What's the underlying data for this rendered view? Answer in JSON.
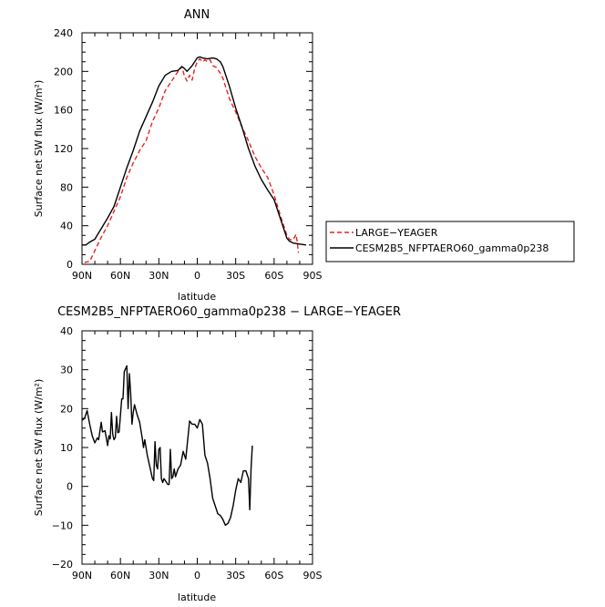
{
  "chart_data": [
    {
      "type": "line",
      "title": "ANN",
      "xlabel": "latitude",
      "ylabel": "Surface net SW flux (W/m²)",
      "xlim": [
        -90,
        90
      ],
      "ylim": [
        0,
        240
      ],
      "x_ticks": [
        -90,
        -60,
        -30,
        0,
        30,
        60,
        90
      ],
      "x_tick_labels": [
        "90N",
        "60N",
        "30N",
        "0",
        "30S",
        "60S",
        "90S"
      ],
      "y_ticks": [
        0,
        40,
        80,
        120,
        160,
        200,
        240
      ],
      "y_tick_labels": [
        "0",
        "40",
        "80",
        "120",
        "160",
        "200",
        "240"
      ],
      "legend_position": "right",
      "series": [
        {
          "name": "LARGE−YEAGER",
          "color": "#e8231e",
          "dash": "dashed",
          "points": [
            [
              -88,
              2
            ],
            [
              -84,
              3
            ],
            [
              -80,
              14
            ],
            [
              -75,
              28
            ],
            [
              -70,
              40
            ],
            [
              -65,
              55
            ],
            [
              -60,
              70
            ],
            [
              -55,
              90
            ],
            [
              -50,
              105
            ],
            [
              -45,
              118
            ],
            [
              -40,
              128
            ],
            [
              -35,
              148
            ],
            [
              -30,
              162
            ],
            [
              -25,
              180
            ],
            [
              -20,
              190
            ],
            [
              -15,
              200
            ],
            [
              -12,
              205
            ],
            [
              -10,
              195
            ],
            [
              -8,
              190
            ],
            [
              -6,
              196
            ],
            [
              -4,
              191
            ],
            [
              -2,
              203
            ],
            [
              0,
              210
            ],
            [
              2,
              213
            ],
            [
              4,
              210
            ],
            [
              6,
              212
            ],
            [
              8,
              210
            ],
            [
              10,
              212
            ],
            [
              12,
              206
            ],
            [
              15,
              204
            ],
            [
              18,
              198
            ],
            [
              20,
              193
            ],
            [
              25,
              172
            ],
            [
              30,
              158
            ],
            [
              35,
              142
            ],
            [
              40,
              128
            ],
            [
              45,
              112
            ],
            [
              50,
              100
            ],
            [
              55,
              90
            ],
            [
              60,
              72
            ],
            [
              65,
              50
            ],
            [
              68,
              38
            ],
            [
              70,
              30
            ],
            [
              72,
              26
            ],
            [
              74,
              25
            ],
            [
              76,
              28
            ],
            [
              77,
              31
            ],
            [
              78,
              24
            ],
            [
              79,
              12
            ]
          ]
        },
        {
          "name": "CESM2B5_NFPTAERO60_gamma0p238",
          "color": "#000000",
          "dash": "solid",
          "points": [
            [
              -90,
              20
            ],
            [
              -87,
              20
            ],
            [
              -84,
              23
            ],
            [
              -80,
              26
            ],
            [
              -75,
              37
            ],
            [
              -70,
              48
            ],
            [
              -65,
              60
            ],
            [
              -60,
              80
            ],
            [
              -55,
              100
            ],
            [
              -50,
              118
            ],
            [
              -45,
              138
            ],
            [
              -40,
              153
            ],
            [
              -35,
              168
            ],
            [
              -30,
              185
            ],
            [
              -25,
              196
            ],
            [
              -20,
              200
            ],
            [
              -15,
              201
            ],
            [
              -12,
              205
            ],
            [
              -10,
              203
            ],
            [
              -8,
              200
            ],
            [
              -6,
              203
            ],
            [
              -4,
              206
            ],
            [
              -2,
              210
            ],
            [
              0,
              214
            ],
            [
              2,
              215
            ],
            [
              4,
              214
            ],
            [
              8,
              213
            ],
            [
              12,
              214
            ],
            [
              15,
              213
            ],
            [
              18,
              210
            ],
            [
              20,
              205
            ],
            [
              25,
              185
            ],
            [
              30,
              162
            ],
            [
              35,
              142
            ],
            [
              40,
              120
            ],
            [
              45,
              102
            ],
            [
              50,
              88
            ],
            [
              55,
              77
            ],
            [
              60,
              67
            ],
            [
              65,
              47
            ],
            [
              68,
              35
            ],
            [
              70,
              27
            ],
            [
              72,
              24
            ],
            [
              75,
              22
            ],
            [
              80,
              21
            ],
            [
              85,
              20
            ]
          ]
        }
      ]
    },
    {
      "type": "line",
      "title": "CESM2B5_NFPTAERO60_gamma0p238 − LARGE−YEAGER",
      "xlabel": "latitude",
      "ylabel": "Surface net SW flux (W/m²)",
      "xlim": [
        -90,
        90
      ],
      "ylim": [
        -20,
        40
      ],
      "x_ticks": [
        -90,
        -60,
        -30,
        0,
        30,
        60,
        90
      ],
      "x_tick_labels": [
        "90N",
        "60N",
        "30N",
        "0",
        "30S",
        "60S",
        "90S"
      ],
      "y_ticks": [
        -20,
        -10,
        0,
        10,
        20,
        30,
        40
      ],
      "y_tick_labels": [
        "−20",
        "−10",
        "0",
        "10",
        "20",
        "30",
        "40"
      ],
      "series": [
        {
          "name": "difference",
          "color": "#000000",
          "dash": "solid",
          "points": [
            [
              -90,
              17
            ],
            [
              -88,
              17.5
            ],
            [
              -86,
              19.5
            ],
            [
              -84,
              16
            ],
            [
              -82,
              13
            ],
            [
              -80,
              11.2
            ],
            [
              -78,
              12.5
            ],
            [
              -77,
              12
            ],
            [
              -75,
              16.5
            ],
            [
              -74,
              14
            ],
            [
              -72,
              14.3
            ],
            [
              -70,
              10.5
            ],
            [
              -69,
              13
            ],
            [
              -68,
              12.2
            ],
            [
              -67,
              19
            ],
            [
              -66,
              13.4
            ],
            [
              -65,
              12
            ],
            [
              -64,
              12.6
            ],
            [
              -63,
              18
            ],
            [
              -62,
              13.8
            ],
            [
              -61,
              14
            ],
            [
              -59,
              22.5
            ],
            [
              -58,
              22.5
            ],
            [
              -57,
              29.5
            ],
            [
              -55,
              31
            ],
            [
              -54,
              20
            ],
            [
              -53,
              29
            ],
            [
              -52,
              24
            ],
            [
              -51,
              16
            ],
            [
              -50,
              19
            ],
            [
              -49,
              21
            ],
            [
              -47,
              18.5
            ],
            [
              -45,
              16.5
            ],
            [
              -43,
              12.5
            ],
            [
              -42,
              10
            ],
            [
              -41,
              12
            ],
            [
              -39,
              8
            ],
            [
              -37,
              5
            ],
            [
              -35,
              2
            ],
            [
              -34,
              1.5
            ],
            [
              -33,
              11.5
            ],
            [
              -32,
              5.5
            ],
            [
              -31,
              4.5
            ],
            [
              -30,
              9.5
            ],
            [
              -29,
              10
            ],
            [
              -28,
              2
            ],
            [
              -27,
              1
            ],
            [
              -26,
              2
            ],
            [
              -25,
              1.5
            ],
            [
              -24,
              1
            ],
            [
              -23,
              0.5
            ],
            [
              -22,
              0.5
            ],
            [
              -21,
              9.5
            ],
            [
              -20,
              2
            ],
            [
              -19,
              2.5
            ],
            [
              -18,
              4.5
            ],
            [
              -17,
              2.5
            ],
            [
              -15,
              4.5
            ],
            [
              -13,
              5.5
            ],
            [
              -11,
              9
            ],
            [
              -9,
              7
            ],
            [
              -7,
              13.5
            ],
            [
              -6,
              16.8
            ],
            [
              -4,
              16
            ],
            [
              -2,
              16
            ],
            [
              0,
              15
            ],
            [
              2,
              17.2
            ],
            [
              4,
              16
            ],
            [
              6,
              8
            ],
            [
              8,
              6
            ],
            [
              10,
              2
            ],
            [
              12,
              -3
            ],
            [
              14,
              -5
            ],
            [
              16,
              -7
            ],
            [
              18,
              -7.5
            ],
            [
              20,
              -8.5
            ],
            [
              22,
              -10
            ],
            [
              24,
              -9.5
            ],
            [
              26,
              -8
            ],
            [
              28,
              -5
            ],
            [
              30,
              -1
            ],
            [
              32,
              2
            ],
            [
              34,
              1
            ],
            [
              36,
              4
            ],
            [
              38,
              4
            ],
            [
              40,
              2
            ],
            [
              41,
              -6
            ],
            [
              42,
              4.5
            ],
            [
              43,
              10.5
            ]
          ]
        }
      ]
    }
  ]
}
